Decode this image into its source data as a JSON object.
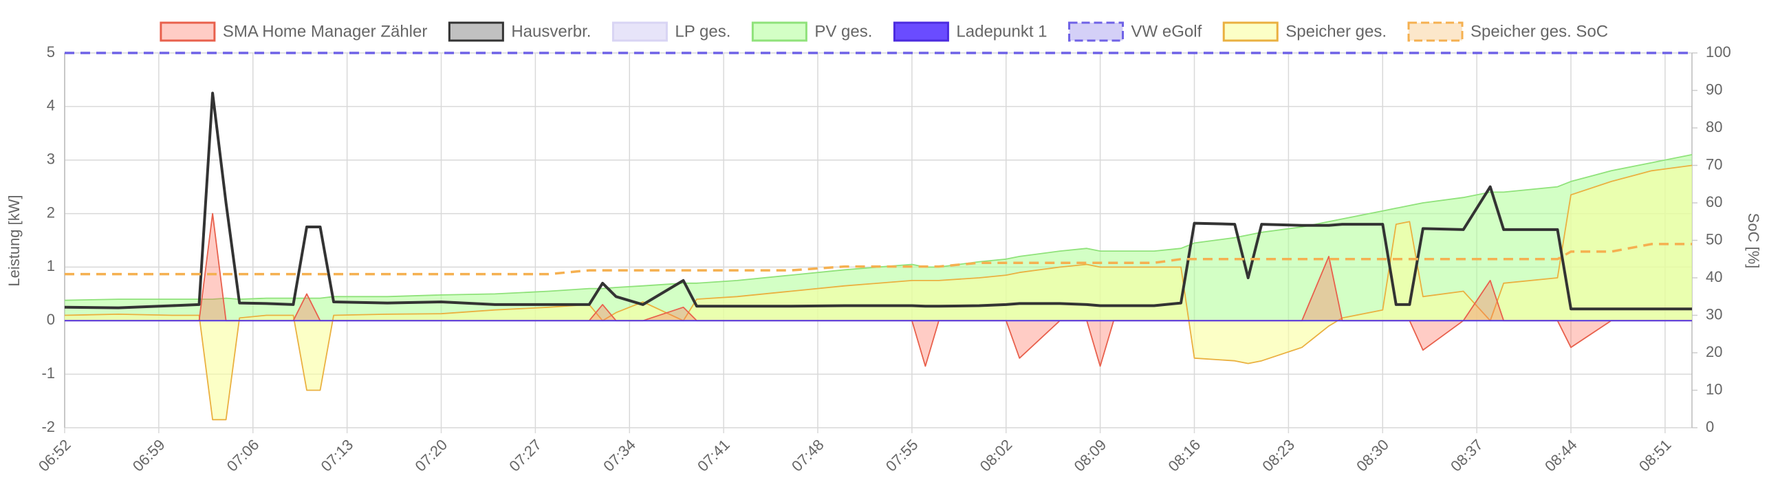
{
  "chart_data": {
    "type": "line",
    "y_label": "Leistung [kW]",
    "y2_label": "SoC [%]",
    "x": [
      "06:52",
      "06:56",
      "07:00",
      "07:02",
      "07:03",
      "07:04",
      "07:05",
      "07:07",
      "07:09",
      "07:10",
      "07:11",
      "07:12",
      "07:16",
      "07:20",
      "07:24",
      "07:28",
      "07:31",
      "07:32",
      "07:33",
      "07:35",
      "07:38",
      "07:39",
      "07:42",
      "07:46",
      "07:50",
      "07:55",
      "07:56",
      "07:57",
      "08:00",
      "08:02",
      "08:03",
      "08:06",
      "08:08",
      "08:09",
      "08:10",
      "08:13",
      "08:15",
      "08:16",
      "08:19",
      "08:20",
      "08:21",
      "08:24",
      "08:26",
      "08:27",
      "08:30",
      "08:31",
      "08:32",
      "08:33",
      "08:36",
      "08:38",
      "08:39",
      "08:43",
      "08:44",
      "08:47",
      "08:50",
      "08:53"
    ],
    "xlim": [
      "06:52",
      "08:53"
    ],
    "xticks": [
      "06:52",
      "06:59",
      "07:06",
      "07:13",
      "07:20",
      "07:27",
      "07:34",
      "07:41",
      "07:48",
      "07:55",
      "08:02",
      "08:09",
      "08:16",
      "08:23",
      "08:30",
      "08:37",
      "08:44",
      "08:51"
    ],
    "ylim": [
      -2,
      5
    ],
    "yticks": [
      -2,
      -1,
      0,
      1,
      2,
      3,
      4,
      5
    ],
    "y2lim": [
      0,
      100
    ],
    "y2ticks": [
      0,
      10,
      20,
      30,
      40,
      50,
      60,
      70,
      80,
      90,
      100
    ],
    "grid": true,
    "series": [
      {
        "name": "SMA Home Manager Zähler",
        "color": "#e8604c",
        "fill": "rgba(255,110,90,0.35)",
        "values": [
          0,
          0,
          0,
          0,
          2,
          0,
          0,
          0,
          0,
          0.5,
          0,
          0,
          0,
          0,
          0,
          0,
          0,
          0.3,
          0,
          0,
          0.25,
          0,
          0,
          0,
          0,
          0,
          -0.85,
          0,
          0,
          0,
          -0.7,
          0,
          0,
          -0.85,
          0,
          0,
          0,
          0,
          0,
          0,
          0,
          0,
          1.2,
          0,
          0,
          0,
          0,
          -0.55,
          0,
          0.75,
          0,
          0,
          -0.5,
          0,
          0,
          0
        ]
      },
      {
        "name": "Hausverbr.",
        "color": "#333333",
        "values": [
          0.25,
          0.24,
          0.28,
          0.3,
          4.25,
          2.2,
          0.33,
          0.32,
          0.3,
          1.75,
          1.75,
          0.35,
          0.33,
          0.35,
          0.3,
          0.3,
          0.3,
          0.7,
          0.45,
          0.3,
          0.75,
          0.27,
          0.27,
          0.27,
          0.28,
          0.28,
          0.27,
          0.27,
          0.28,
          0.3,
          0.32,
          0.32,
          0.3,
          0.28,
          0.28,
          0.28,
          0.33,
          1.82,
          1.8,
          0.8,
          1.8,
          1.78,
          1.78,
          1.8,
          1.8,
          0.3,
          0.3,
          1.72,
          1.7,
          2.5,
          1.7,
          1.7,
          0.22,
          0.22,
          0.22,
          0.22
        ]
      },
      {
        "name": "LP ges.",
        "color": "#d8d4f4",
        "fill": "rgba(215,210,245,0.6)",
        "values": [
          0,
          0,
          0,
          0,
          0,
          0,
          0,
          0,
          0,
          0,
          0,
          0,
          0,
          0,
          0,
          0,
          0,
          0,
          0,
          0,
          0,
          0,
          0,
          0,
          0,
          0,
          0,
          0,
          0,
          0,
          0,
          0,
          0,
          0,
          0,
          0,
          0,
          0,
          0,
          0,
          0,
          0,
          0,
          0,
          0,
          0,
          0,
          0,
          0,
          0,
          0,
          0,
          0,
          0,
          0,
          0
        ]
      },
      {
        "name": "PV ges.",
        "color": "#8fe27a",
        "fill": "rgba(175,255,150,0.55)",
        "values": [
          0.38,
          0.4,
          0.4,
          0.4,
          0.4,
          0.42,
          0.4,
          0.42,
          0.42,
          0.42,
          0.42,
          0.45,
          0.45,
          0.48,
          0.5,
          0.55,
          0.6,
          0.6,
          0.62,
          0.65,
          0.7,
          0.7,
          0.75,
          0.85,
          0.95,
          1.05,
          1,
          1,
          1.1,
          1.15,
          1.2,
          1.3,
          1.35,
          1.3,
          1.3,
          1.3,
          1.35,
          1.45,
          1.55,
          1.6,
          1.65,
          1.75,
          1.85,
          1.9,
          2.05,
          2.1,
          2.15,
          2.2,
          2.3,
          2.4,
          2.4,
          2.5,
          2.6,
          2.8,
          2.95,
          3.1
        ]
      },
      {
        "name": "Ladepunkt 1",
        "color": "#4b2bdf",
        "fill": "#6a4cff",
        "values": [
          0,
          0,
          0,
          0,
          0,
          0,
          0,
          0,
          0,
          0,
          0,
          0,
          0,
          0,
          0,
          0,
          0,
          0,
          0,
          0,
          0,
          0,
          0,
          0,
          0,
          0,
          0,
          0,
          0,
          0,
          0,
          0,
          0,
          0,
          0,
          0,
          0,
          0,
          0,
          0,
          0,
          0,
          0,
          0,
          0,
          0,
          0,
          0,
          0,
          0,
          0,
          0,
          0,
          0,
          0,
          0
        ]
      },
      {
        "name": "VW eGolf",
        "color": "#6f62e6",
        "dashed": true,
        "axis": "y2",
        "values": [
          100,
          100,
          100,
          100,
          100,
          100,
          100,
          100,
          100,
          100,
          100,
          100,
          100,
          100,
          100,
          100,
          100,
          100,
          100,
          100,
          100,
          100,
          100,
          100,
          100,
          100,
          100,
          100,
          100,
          100,
          100,
          100,
          100,
          100,
          100,
          100,
          100,
          100,
          100,
          100,
          100,
          100,
          100,
          100,
          100,
          100,
          100,
          100,
          100,
          100,
          100,
          100,
          100,
          100,
          100,
          100
        ]
      },
      {
        "name": "Speicher ges.",
        "color": "#eab040",
        "fill": "rgba(250,255,160,0.6)",
        "values": [
          0.1,
          0.12,
          0.1,
          0.1,
          -1.85,
          -1.85,
          0.05,
          0.1,
          0.1,
          -1.3,
          -1.3,
          0.1,
          0.12,
          0.13,
          0.2,
          0.25,
          0.3,
          0,
          0.15,
          0.35,
          0,
          0.4,
          0.45,
          0.55,
          0.65,
          0.75,
          0.75,
          0.75,
          0.8,
          0.85,
          0.9,
          1,
          1.05,
          1,
          1,
          1,
          1,
          -0.7,
          -0.75,
          -0.8,
          -0.75,
          -0.5,
          -0.1,
          0.05,
          0.2,
          1.8,
          1.85,
          0.45,
          0.55,
          0,
          0.7,
          0.8,
          2.35,
          2.6,
          2.8,
          2.9
        ]
      },
      {
        "name": "Speicher ges. SoC",
        "color": "#f5b050",
        "dashed": true,
        "axis": "y2",
        "values": [
          41,
          41,
          41,
          41,
          41,
          41,
          41,
          41,
          41,
          41,
          41,
          41,
          41,
          41,
          41,
          41,
          42,
          42,
          42,
          42,
          42,
          42,
          42,
          42,
          43,
          43,
          43,
          43,
          44,
          44,
          44,
          44,
          44,
          44,
          44,
          44,
          45,
          45,
          45,
          45,
          45,
          45,
          45,
          45,
          45,
          45,
          45,
          45,
          45,
          45,
          45,
          45,
          47,
          47,
          49,
          49
        ]
      }
    ]
  }
}
